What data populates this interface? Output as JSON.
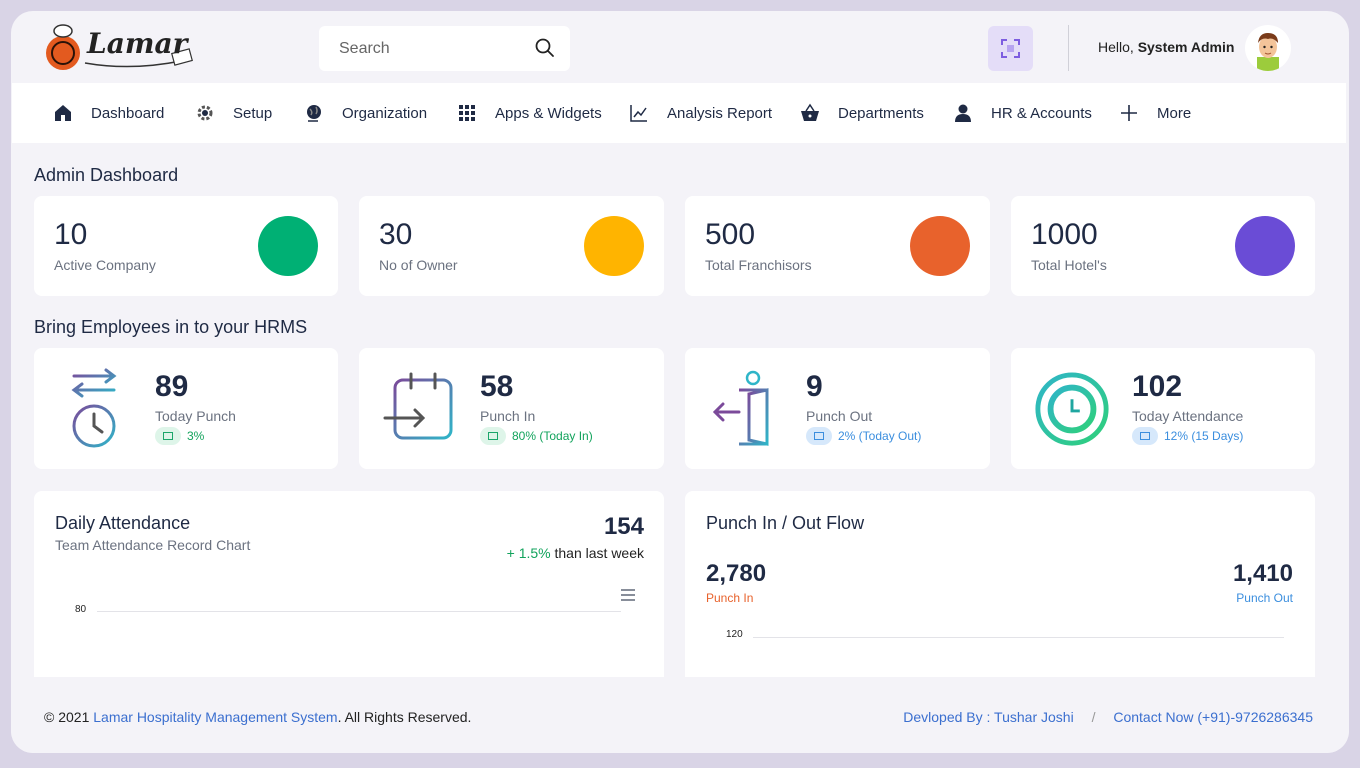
{
  "header": {
    "logo_text": "Lamar",
    "search_placeholder": "Search",
    "greeting": "Hello,",
    "user_name": "System Admin"
  },
  "nav": {
    "items": [
      {
        "label": "Dashboard",
        "icon": "home-icon"
      },
      {
        "label": "Setup",
        "icon": "gear-icon"
      },
      {
        "label": "Organization",
        "icon": "globe-icon"
      },
      {
        "label": "Apps & Widgets",
        "icon": "grid-icon"
      },
      {
        "label": "Analysis Report",
        "icon": "chart-line-icon"
      },
      {
        "label": "Departments",
        "icon": "basket-icon"
      },
      {
        "label": "HR & Accounts",
        "icon": "user-icon"
      },
      {
        "label": "More",
        "icon": "plus-icon"
      }
    ]
  },
  "dashboard": {
    "title": "Admin Dashboard",
    "stats": [
      {
        "value": "10",
        "label": "Active Company",
        "color": "#00b074"
      },
      {
        "value": "30",
        "label": "No of Owner",
        "color": "#ffb400"
      },
      {
        "value": "500",
        "label": "Total Franchisors",
        "color": "#e8622c"
      },
      {
        "value": "1000",
        "label": "Total Hotel's",
        "color": "#6a4cd6"
      }
    ]
  },
  "employees": {
    "title": "Bring Employees in to your HRMS",
    "cards": [
      {
        "value": "89",
        "label": "Today Punch",
        "badge": "3%",
        "badge_style": "green",
        "icon": "swap-clock-icon"
      },
      {
        "value": "58",
        "label": "Punch In",
        "badge": "80% (Today In)",
        "badge_style": "green",
        "icon": "calendar-enter-icon"
      },
      {
        "value": "9",
        "label": "Punch Out",
        "badge": "2% (Today Out)",
        "badge_style": "blue",
        "icon": "door-exit-icon"
      },
      {
        "value": "102",
        "label": "Today Attendance",
        "badge": "12% (15 Days)",
        "badge_style": "blue",
        "icon": "clock-ring-icon"
      }
    ]
  },
  "daily_attendance": {
    "title": "Daily Attendance",
    "subtitle": "Team Attendance Record Chart",
    "total": "154",
    "change": "+ 1.5%",
    "change_suffix": "than last week",
    "y_tick": "80"
  },
  "punch_flow": {
    "title": "Punch In / Out Flow",
    "in_value": "2,780",
    "in_label": "Punch In",
    "out_value": "1,410",
    "out_label": "Punch Out",
    "y_tick": "120"
  },
  "footer": {
    "copyright_prefix": "© 2021",
    "company": "Lamar Hospitality Management System",
    "copyright_suffix": ". All Rights Reserved.",
    "developer": "Devloped By : Tushar Joshi",
    "separator": "/",
    "contact": "Contact Now (+91)-9726286345"
  },
  "colors": {
    "green": "#00b074",
    "yellow": "#ffb400",
    "orange": "#e8622c",
    "purple": "#6a4cd6",
    "link": "#3b6fcf"
  }
}
